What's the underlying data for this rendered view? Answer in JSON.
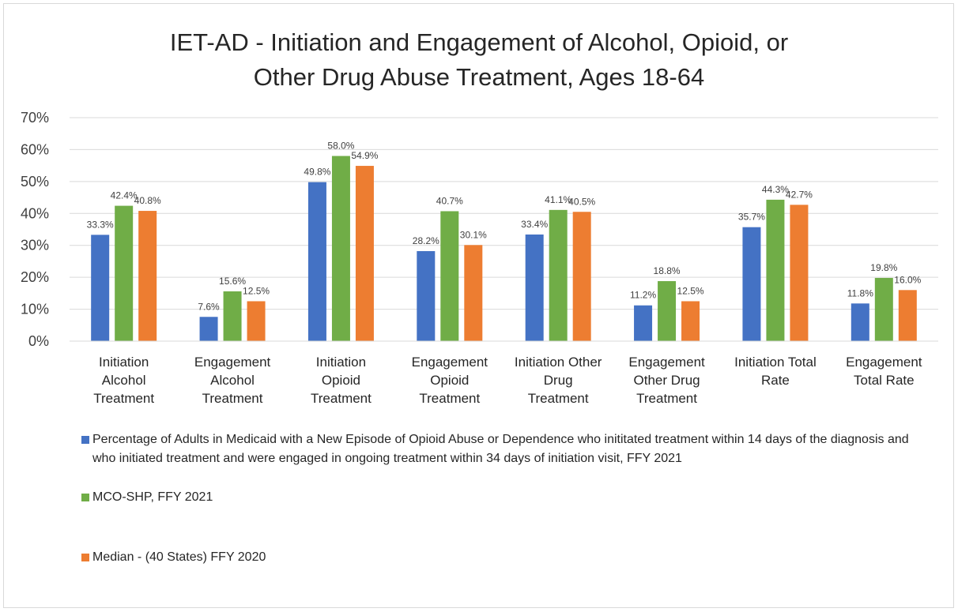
{
  "chart_data": {
    "type": "bar",
    "title_lines": [
      "IET-AD - Initiation and Engagement of Alcohol, Opioid, or",
      "Other Drug Abuse Treatment, Ages 18-64"
    ],
    "categories": [
      "Initiation Alcohol Treatment",
      "Engagement Alcohol Treatment",
      "Initiation Opioid Treatment",
      "Engagement Opioid Treatment",
      "Initiation Other Drug Treatment",
      "Engagement Other Drug Treatment",
      "Initiation Total Rate",
      "Engagement Total Rate"
    ],
    "category_lines": [
      [
        "Initiation",
        "Alcohol",
        "Treatment"
      ],
      [
        "Engagement",
        "Alcohol",
        "Treatment"
      ],
      [
        "Initiation",
        "Opioid",
        "Treatment"
      ],
      [
        "Engagement",
        "Opioid",
        "Treatment"
      ],
      [
        "Initiation Other",
        "Drug",
        "Treatment"
      ],
      [
        "Engagement",
        "Other Drug",
        "Treatment"
      ],
      [
        "Initiation Total",
        "Rate"
      ],
      [
        "Engagement",
        "Total Rate"
      ]
    ],
    "series": [
      {
        "name": "Percentage of Adults in Medicaid with a New Episode of Opioid Abuse or Dependence who inititated treatment within 14 days of the diagnosis and who initiated treatment and were engaged in ongoing treatment within 34 days of initiation visit, FFY 2021",
        "color": "#4472c4",
        "values": [
          33.3,
          7.6,
          49.8,
          28.2,
          33.4,
          11.2,
          35.7,
          11.8
        ],
        "labels": [
          "33.3%",
          "7.6%",
          "49.8%",
          "28.2%",
          "33.4%",
          "11.2%",
          "35.7%",
          "11.8%"
        ]
      },
      {
        "name": "MCO-SHP, FFY 2021",
        "color": "#70ad47",
        "values": [
          42.4,
          15.6,
          58.0,
          40.7,
          41.1,
          18.8,
          44.3,
          19.8
        ],
        "labels": [
          "42.4%",
          "15.6%",
          "58.0%",
          "40.7%",
          "41.1%",
          "18.8%",
          "44.3%",
          "19.8%"
        ]
      },
      {
        "name": "Median -  (40 States) FFY 2020",
        "color": "#ed7d31",
        "values": [
          40.8,
          12.5,
          54.9,
          30.1,
          40.5,
          12.5,
          42.7,
          16.0
        ],
        "labels": [
          "40.8%",
          "12.5%",
          "54.9%",
          "30.1%",
          "40.5%",
          "12.5%",
          "42.7%",
          "16.0%"
        ]
      }
    ],
    "ylim": [
      0,
      70
    ],
    "yticks": [
      0,
      10,
      20,
      30,
      40,
      50,
      60,
      70
    ],
    "ytick_labels": [
      "0%",
      "10%",
      "20%",
      "30%",
      "40%",
      "50%",
      "60%",
      "70%"
    ],
    "grid": true,
    "legend_position": "bottom"
  }
}
